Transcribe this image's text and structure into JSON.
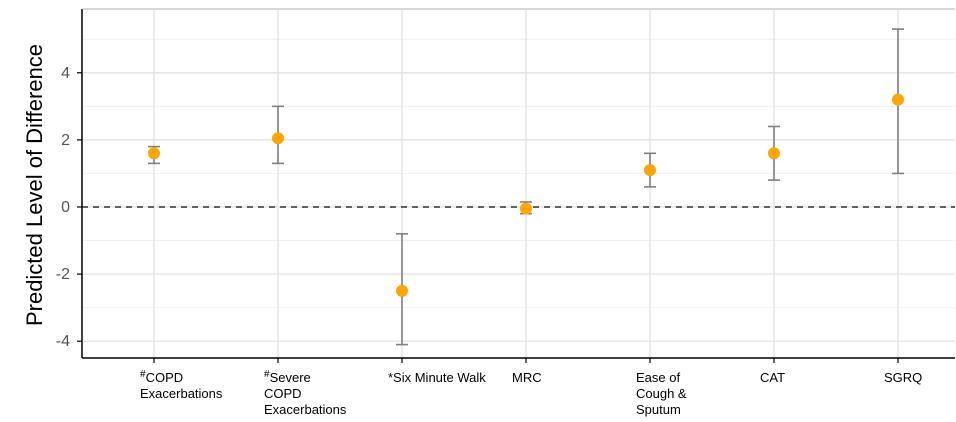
{
  "chart_data": {
    "type": "scatter",
    "ylabel": "Predicted Level of Difference",
    "ylim": [
      -4.5,
      5.9
    ],
    "yticks": [
      4,
      2,
      0,
      -2,
      -4
    ],
    "ytick_labels": [
      "4",
      "2",
      "0",
      "-2",
      "-4"
    ],
    "reference_line": 0,
    "grid": true,
    "categories": [
      {
        "prefix": "#",
        "lines": [
          "COPD",
          "Exacerbations"
        ],
        "estimate": 1.6,
        "lower": 1.3,
        "upper": 1.8
      },
      {
        "prefix": "#",
        "lines": [
          "Severe",
          "COPD",
          "Exacerbations"
        ],
        "estimate": 2.05,
        "lower": 1.3,
        "upper": 3.0
      },
      {
        "prefix": "",
        "lines": [
          "*Six Minute Walk"
        ],
        "estimate": -2.5,
        "lower": -4.1,
        "upper": -0.8
      },
      {
        "prefix": "",
        "lines": [
          "MRC"
        ],
        "estimate": -0.05,
        "lower": -0.2,
        "upper": 0.15
      },
      {
        "prefix": "",
        "lines": [
          "Ease of",
          "Cough &",
          "Sputum"
        ],
        "estimate": 1.1,
        "lower": 0.6,
        "upper": 1.6
      },
      {
        "prefix": "",
        "lines": [
          "CAT"
        ],
        "estimate": 1.6,
        "lower": 0.8,
        "upper": 2.4
      },
      {
        "prefix": "",
        "lines": [
          "SGRQ"
        ],
        "estimate": 3.2,
        "lower": 1.0,
        "upper": 5.3
      }
    ],
    "colors": {
      "point": "#FFA500",
      "errorbar": "#808080",
      "grid": "#E6E6E6",
      "reference_line": "#333333",
      "axis": "#000000"
    }
  }
}
